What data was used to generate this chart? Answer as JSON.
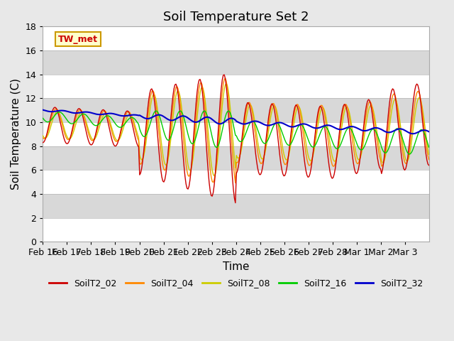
{
  "title": "Soil Temperature Set 2",
  "xlabel": "Time",
  "ylabel": "Soil Temperature (C)",
  "ylim": [
    0,
    18
  ],
  "annotation": "TW_met",
  "legend": [
    "SoilT2_02",
    "SoilT2_04",
    "SoilT2_08",
    "SoilT2_16",
    "SoilT2_32"
  ],
  "colors": {
    "SoilT2_02": "#cc0000",
    "SoilT2_04": "#ff8800",
    "SoilT2_08": "#cccc00",
    "SoilT2_16": "#00cc00",
    "SoilT2_32": "#0000cc"
  },
  "plot_bg_color": "#e8e8e8",
  "title_fontsize": 13,
  "axis_label_fontsize": 11,
  "tick_fontsize": 9,
  "num_days": 16,
  "xtick_labels": [
    "Feb 16",
    "Feb 17",
    "Feb 18",
    "Feb 19",
    "Feb 20",
    "Feb 21",
    "Feb 22",
    "Feb 23",
    "Feb 24",
    "Feb 25",
    "Feb 26",
    "Feb 27",
    "Feb 28",
    "Mar 1",
    "Mar 2",
    "Mar 3"
  ],
  "ytick_vals": [
    0,
    2,
    4,
    6,
    8,
    10,
    12,
    14,
    16,
    18
  ]
}
